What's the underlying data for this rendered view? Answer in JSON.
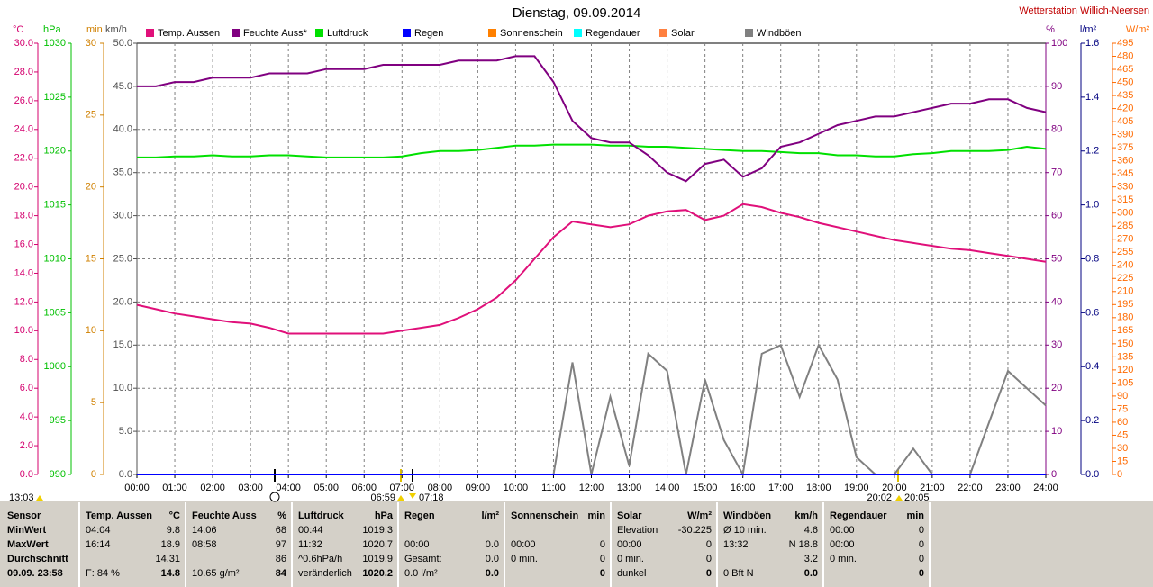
{
  "chart_data": {
    "type": "line",
    "title": "Dienstag, 09.09.2014",
    "station": "Wetterstation Willich-Neersen",
    "grid": true,
    "grid_axis": "km/h",
    "xlim": [
      0,
      24
    ],
    "xticks": [
      {
        "value": 0,
        "label": "00:00"
      },
      {
        "value": 1,
        "label": "01:00"
      },
      {
        "value": 2,
        "label": "02:00"
      },
      {
        "value": 3,
        "label": "03:00"
      },
      {
        "value": 4,
        "label": "04:00"
      },
      {
        "value": 5,
        "label": "05:00"
      },
      {
        "value": 6,
        "label": "06:00"
      },
      {
        "value": 7,
        "label": "07:00"
      },
      {
        "value": 8,
        "label": "08:00"
      },
      {
        "value": 9,
        "label": "09:00"
      },
      {
        "value": 10,
        "label": "10:00"
      },
      {
        "value": 11,
        "label": "11:00"
      },
      {
        "value": 12,
        "label": "12:00"
      },
      {
        "value": 13,
        "label": "13:00"
      },
      {
        "value": 14,
        "label": "14:00"
      },
      {
        "value": 15,
        "label": "15:00"
      },
      {
        "value": 16,
        "label": "16:00"
      },
      {
        "value": 17,
        "label": "17:00"
      },
      {
        "value": 18,
        "label": "18:00"
      },
      {
        "value": 19,
        "label": "19:00"
      },
      {
        "value": 20,
        "label": "20:00"
      },
      {
        "value": 21,
        "label": "21:00"
      },
      {
        "value": 22,
        "label": "22:00"
      },
      {
        "value": 23,
        "label": "23:00"
      },
      {
        "value": 24,
        "label": "24:00"
      }
    ],
    "axes": [
      {
        "unit": "°C",
        "color": "#d4006e",
        "lim": [
          0,
          30
        ],
        "ticks": [
          {
            "value": 0,
            "label": "0.0"
          },
          {
            "value": 2,
            "label": "2.0"
          },
          {
            "value": 4,
            "label": "4.0"
          },
          {
            "value": 6,
            "label": "6.0"
          },
          {
            "value": 8,
            "label": "8.0"
          },
          {
            "value": 10,
            "label": "10.0"
          },
          {
            "value": 12,
            "label": "12.0"
          },
          {
            "value": 14,
            "label": "14.0"
          },
          {
            "value": 16,
            "label": "16.0"
          },
          {
            "value": 18,
            "label": "18.0"
          },
          {
            "value": 20,
            "label": "20.0"
          },
          {
            "value": 22,
            "label": "22.0"
          },
          {
            "value": 24,
            "label": "24.0"
          },
          {
            "value": 26,
            "label": "26.0"
          },
          {
            "value": 28,
            "label": "28.0"
          },
          {
            "value": 30,
            "label": "30.0"
          }
        ]
      },
      {
        "unit": "hPa",
        "color": "#00c000",
        "lim": [
          990,
          1030
        ],
        "ticks": [
          990,
          995,
          1000,
          1005,
          1010,
          1015,
          1020,
          1025,
          1030
        ]
      },
      {
        "unit": "min",
        "color": "#d08000",
        "lim": [
          0,
          30
        ],
        "ticks": [
          0,
          5,
          10,
          15,
          20,
          25,
          30
        ]
      },
      {
        "unit": "km/h",
        "color": "#505050",
        "lim": [
          0,
          50
        ],
        "ticks": [
          {
            "value": 0,
            "label": "0.0"
          },
          {
            "value": 5,
            "label": "5.0"
          },
          {
            "value": 10,
            "label": "10.0"
          },
          {
            "value": 15,
            "label": "15.0"
          },
          {
            "value": 20,
            "label": "20.0"
          },
          {
            "value": 25,
            "label": "25.0"
          },
          {
            "value": 30,
            "label": "30.0"
          },
          {
            "value": 35,
            "label": "35.0"
          },
          {
            "value": 40,
            "label": "40.0"
          },
          {
            "value": 45,
            "label": "45.0"
          },
          {
            "value": 50,
            "label": "50.0"
          }
        ]
      },
      {
        "unit": "%",
        "color": "#800080",
        "lim": [
          0,
          100
        ],
        "ticks": [
          0,
          10,
          20,
          30,
          40,
          50,
          60,
          70,
          80,
          90,
          100
        ]
      },
      {
        "unit": "l/m²",
        "color": "#000080",
        "lim": [
          0,
          1.6
        ],
        "ticks": [
          {
            "value": 0,
            "label": "0.0"
          },
          0.2,
          0.4,
          0.6,
          0.8,
          {
            "value": 1,
            "label": "1.0"
          },
          1.2,
          1.4,
          1.6
        ]
      },
      {
        "unit": "W/m²",
        "color": "#ff6a00",
        "lim": [
          0,
          495
        ],
        "ticks": [
          0,
          15,
          30,
          45,
          60,
          75,
          90,
          105,
          120,
          135,
          150,
          165,
          180,
          195,
          210,
          225,
          240,
          255,
          270,
          285,
          300,
          315,
          330,
          345,
          360,
          375,
          390,
          405,
          420,
          435,
          450,
          465,
          480,
          495
        ]
      }
    ],
    "x": [
      0,
      0.5,
      1,
      1.5,
      2,
      2.5,
      3,
      3.5,
      4,
      4.5,
      5,
      5.5,
      6,
      6.5,
      7,
      7.5,
      8,
      8.5,
      9,
      9.5,
      10,
      10.5,
      11,
      11.5,
      12,
      12.5,
      13,
      13.5,
      14,
      14.5,
      15,
      15.5,
      16,
      16.5,
      17,
      17.5,
      18,
      18.5,
      19,
      19.5,
      20,
      20.5,
      21,
      21.5,
      22,
      22.5,
      23,
      23.5,
      24
    ],
    "series": [
      {
        "name": "Temp. Aussen",
        "color": "#e0107a",
        "axis": "°C",
        "values": [
          11.8,
          11.5,
          11.2,
          11.0,
          10.8,
          10.6,
          10.5,
          10.2,
          9.8,
          9.8,
          9.8,
          9.8,
          9.8,
          9.8,
          10.0,
          10.2,
          10.4,
          10.9,
          11.5,
          12.3,
          13.5,
          15.0,
          16.5,
          17.6,
          17.4,
          17.2,
          17.4,
          18.0,
          18.3,
          18.4,
          17.7,
          18.0,
          18.8,
          18.6,
          18.2,
          17.9,
          17.5,
          17.2,
          16.9,
          16.6,
          16.3,
          16.1,
          15.9,
          15.7,
          15.6,
          15.4,
          15.2,
          15.0,
          14.8
        ]
      },
      {
        "name": "Feuchte Auss*",
        "color": "#800080",
        "axis": "%",
        "values": [
          90,
          90,
          91,
          91,
          92,
          92,
          92,
          93,
          93,
          93,
          94,
          94,
          94,
          95,
          95,
          95,
          95,
          96,
          96,
          96,
          97,
          97,
          91,
          82,
          78,
          77,
          77,
          74,
          70,
          68,
          72,
          73,
          69,
          71,
          76,
          77,
          79,
          81,
          82,
          83,
          83,
          84,
          85,
          86,
          86,
          87,
          87,
          85,
          84
        ]
      },
      {
        "name": "Luftdruck",
        "color": "#00e000",
        "axis": "hPa",
        "values": [
          1019.4,
          1019.4,
          1019.5,
          1019.5,
          1019.6,
          1019.5,
          1019.5,
          1019.6,
          1019.6,
          1019.5,
          1019.4,
          1019.4,
          1019.4,
          1019.4,
          1019.5,
          1019.8,
          1020.0,
          1020.0,
          1020.1,
          1020.3,
          1020.5,
          1020.5,
          1020.6,
          1020.6,
          1020.6,
          1020.5,
          1020.5,
          1020.4,
          1020.4,
          1020.3,
          1020.2,
          1020.1,
          1020.0,
          1020.0,
          1019.9,
          1019.8,
          1019.8,
          1019.6,
          1019.6,
          1019.5,
          1019.5,
          1019.7,
          1019.8,
          1020.0,
          1020.0,
          1020.0,
          1020.1,
          1020.4,
          1020.2
        ]
      },
      {
        "name": "Regen",
        "color": "#0000ff",
        "axis": "l/m²",
        "values": [
          0,
          0,
          0,
          0,
          0,
          0,
          0,
          0,
          0,
          0,
          0,
          0,
          0,
          0,
          0,
          0,
          0,
          0,
          0,
          0,
          0,
          0,
          0,
          0,
          0,
          0,
          0,
          0,
          0,
          0,
          0,
          0,
          0,
          0,
          0,
          0,
          0,
          0,
          0,
          0,
          0,
          0,
          0,
          0,
          0,
          0,
          0,
          0,
          0
        ]
      },
      {
        "name": "Sonnenschein",
        "color": "#ff8000",
        "axis": "min",
        "values": [
          0,
          0,
          0,
          0,
          0,
          0,
          0,
          0,
          0,
          0,
          0,
          0,
          0,
          0,
          0,
          0,
          0,
          0,
          0,
          0,
          0,
          0,
          0,
          0,
          0,
          0,
          0,
          0,
          0,
          0,
          0,
          0,
          0,
          0,
          0,
          0,
          0,
          0,
          0,
          0,
          0,
          0,
          0,
          0,
          0,
          0,
          0,
          0,
          0
        ]
      },
      {
        "name": "Regendauer",
        "color": "#00ffff",
        "axis": "min",
        "values": [
          0,
          0,
          0,
          0,
          0,
          0,
          0,
          0,
          0,
          0,
          0,
          0,
          0,
          0,
          0,
          0,
          0,
          0,
          0,
          0,
          0,
          0,
          0,
          0,
          0,
          0,
          0,
          0,
          0,
          0,
          0,
          0,
          0,
          0,
          0,
          0,
          0,
          0,
          0,
          0,
          0,
          0,
          0,
          0,
          0,
          0,
          0,
          0,
          0
        ]
      },
      {
        "name": "Solar",
        "color": "#ff8040",
        "axis": "W/m²",
        "values": [
          0,
          0,
          0,
          0,
          0,
          0,
          0,
          0,
          0,
          0,
          0,
          0,
          0,
          0,
          0,
          0,
          0,
          0,
          0,
          0,
          0,
          0,
          0,
          0,
          0,
          0,
          0,
          0,
          0,
          0,
          0,
          0,
          0,
          0,
          0,
          0,
          0,
          0,
          0,
          0,
          0,
          0,
          0,
          0,
          0,
          0,
          0,
          0,
          0
        ]
      },
      {
        "name": "Windböen",
        "color": "#808080",
        "axis": "km/h",
        "values": [
          0,
          0,
          0,
          0,
          0,
          0,
          0,
          0,
          0,
          0,
          0,
          0,
          0,
          0,
          0,
          0,
          0,
          0,
          0,
          0,
          0,
          0,
          0,
          13,
          0,
          9,
          1,
          14,
          12,
          0,
          11,
          4,
          0,
          14,
          15,
          9,
          15,
          11,
          2,
          0,
          0,
          3,
          0,
          0,
          0,
          6,
          12,
          10,
          8
        ]
      }
    ],
    "markers": [
      "13:03",
      "06:59",
      "07:18",
      "20:02",
      "20:05"
    ]
  },
  "table": {
    "row_labels": [
      "Sensor",
      "MinWert",
      "MaxWert",
      "Durchschnitt",
      "09.09. 23:58"
    ],
    "columns": [
      {
        "header": "Temp. Aussen",
        "unit": "°C",
        "rows": [
          [
            "04:04",
            "9.8"
          ],
          [
            "16:14",
            "18.9"
          ],
          [
            null,
            "14.31"
          ],
          [
            "F: 84 %",
            "14.8"
          ]
        ]
      },
      {
        "header": "Feuchte Auss",
        "unit": "%",
        "rows": [
          [
            "14:06",
            "68"
          ],
          [
            "08:58",
            "97"
          ],
          [
            null,
            "86"
          ],
          [
            "10.65 g/m²",
            "84"
          ]
        ]
      },
      {
        "header": "Luftdruck",
        "unit": "hPa",
        "rows": [
          [
            "00:44",
            "1019.3"
          ],
          [
            "11:32",
            "1020.7"
          ],
          [
            "^0.6hPa/h",
            "1019.9"
          ],
          [
            "veränderlich",
            "1020.2"
          ]
        ]
      },
      {
        "header": "Regen",
        "unit": "l/m²",
        "rows": [
          [
            null,
            null
          ],
          [
            "00:00",
            "0.0"
          ],
          [
            "Gesamt:",
            "0.0"
          ],
          [
            "0.0 l/m²",
            "0.0"
          ]
        ]
      },
      {
        "header": "Sonnenschein",
        "unit": "min",
        "rows": [
          [
            null,
            null
          ],
          [
            "00:00",
            "0"
          ],
          [
            "0 min.",
            "0"
          ],
          [
            null,
            "0"
          ]
        ]
      },
      {
        "header": "Solar",
        "unit": "W/m²",
        "rows": [
          [
            "Elevation",
            "-30.225"
          ],
          [
            "00:00",
            "0"
          ],
          [
            "0 min.",
            "0"
          ],
          [
            "dunkel",
            "0"
          ]
        ]
      },
      {
        "header": "Windböen",
        "unit": "km/h",
        "rows": [
          [
            "Ø 10 min.",
            "4.6"
          ],
          [
            "13:32",
            "N 18.8"
          ],
          [
            null,
            "3.2"
          ],
          [
            "0 Bft N",
            "0.0"
          ]
        ]
      },
      {
        "header": "Regendauer",
        "unit": "min",
        "rows": [
          [
            "00:00",
            "0"
          ],
          [
            "00:00",
            "0"
          ],
          [
            "0 min.",
            "0"
          ],
          [
            null,
            "0"
          ]
        ]
      }
    ]
  }
}
